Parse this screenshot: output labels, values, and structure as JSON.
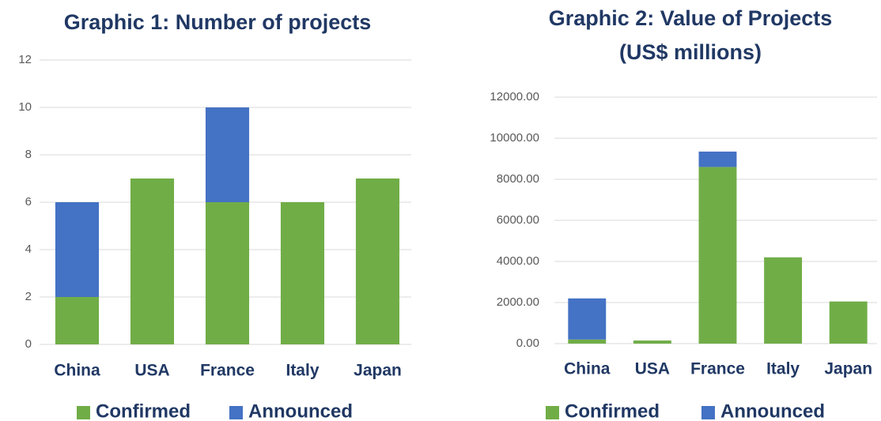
{
  "chart_data": [
    {
      "type": "stacked_bar",
      "title": [
        "Graphic 1: Number of projects"
      ],
      "categories": [
        "China",
        "USA",
        "France",
        "Italy",
        "Japan"
      ],
      "series": [
        {
          "name": "Confirmed",
          "color": "#70ad47",
          "values": [
            2,
            7,
            6,
            6,
            7
          ]
        },
        {
          "name": "Announced",
          "color": "#4472c4",
          "values": [
            4,
            0,
            4,
            0,
            0
          ]
        }
      ],
      "ylim": [
        0,
        12
      ],
      "yticks": [
        0,
        2,
        4,
        6,
        8,
        10,
        12
      ],
      "grid": true,
      "legend": "bottom"
    },
    {
      "type": "stacked_bar",
      "title": [
        "Graphic 2: Value of Projects",
        "(US$ millions)"
      ],
      "categories": [
        "China",
        "USA",
        "France",
        "Italy",
        "Japan"
      ],
      "series": [
        {
          "name": "Confirmed",
          "color": "#70ad47",
          "values": [
            200,
            150,
            8600,
            4200,
            2050
          ]
        },
        {
          "name": "Announced",
          "color": "#4472c4",
          "values": [
            2000,
            0,
            750,
            0,
            0
          ]
        }
      ],
      "ylim": [
        0,
        12000
      ],
      "yticks": [
        {
          "value": 0,
          "label": "0.00"
        },
        {
          "value": 2000,
          "label": "2000.00"
        },
        {
          "value": 4000,
          "label": "4000.00"
        },
        {
          "value": 6000,
          "label": "6000.00"
        },
        {
          "value": 8000,
          "label": "8000.00"
        },
        {
          "value": 10000,
          "label": "10000.00"
        },
        {
          "value": 12000,
          "label": "12000.00"
        }
      ],
      "grid": true,
      "legend": "bottom"
    }
  ]
}
